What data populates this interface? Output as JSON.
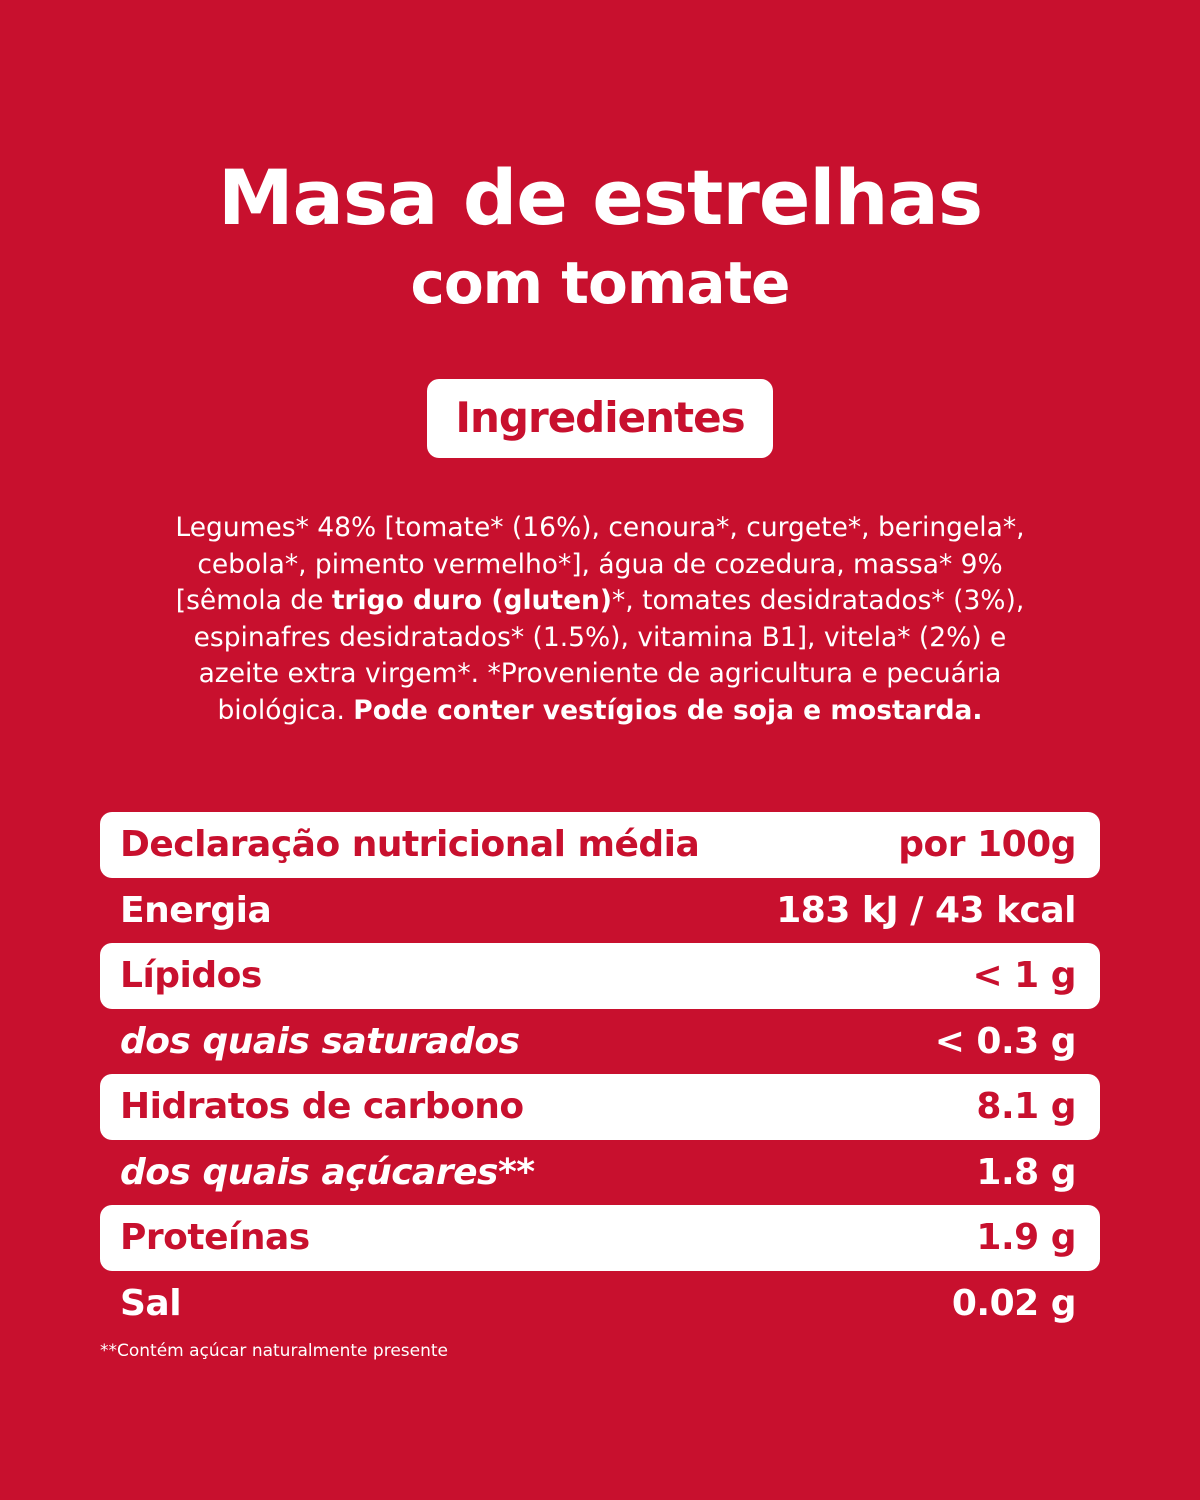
{
  "title": "Masa de estrelhas",
  "subtitle": "com tomate",
  "ingredients_heading": "Ingredientes",
  "ingredients": {
    "line1": "Legumes* 48% [tomate* (16%), cenoura*, curgete*, beringela*,",
    "line2": "cebola*, pimento vermelho*], água de cozedura, massa* 9%",
    "line3_pre": "[sêmola de ",
    "line3_bold": "trigo duro (gluten)",
    "line3_post": "*, tomates desidratados* (3%),",
    "line4": "espinafres desidratados* (1.5%), vitamina B1], vitela* (2%) e",
    "line5": "azeite extra virgem*. *Proveniente de agricultura e pecuária",
    "line6_pre": "biológica. ",
    "line6_bold": "Pode conter vestígios de soja e mostarda."
  },
  "nutrition": {
    "header_label": "Declaração nutricional média",
    "header_value": "por 100g",
    "rows": [
      {
        "label": "Energia",
        "value": "183 kJ / 43 kcal"
      },
      {
        "label": "Lípidos",
        "value": "< 1 g"
      },
      {
        "label": "dos quais saturados",
        "value": "< 0.3 g"
      },
      {
        "label": "Hidratos de carbono",
        "value": "8.1 g"
      },
      {
        "label": "dos quais açúcares**",
        "value": "1.8 g"
      },
      {
        "label": "Proteínas",
        "value": "1.9 g"
      },
      {
        "label": "Sal",
        "value": "0.02 g"
      }
    ]
  },
  "footnote": "**Contém açúcar naturalmente presente",
  "colors": {
    "background": "#c8102e",
    "text": "#ffffff"
  }
}
